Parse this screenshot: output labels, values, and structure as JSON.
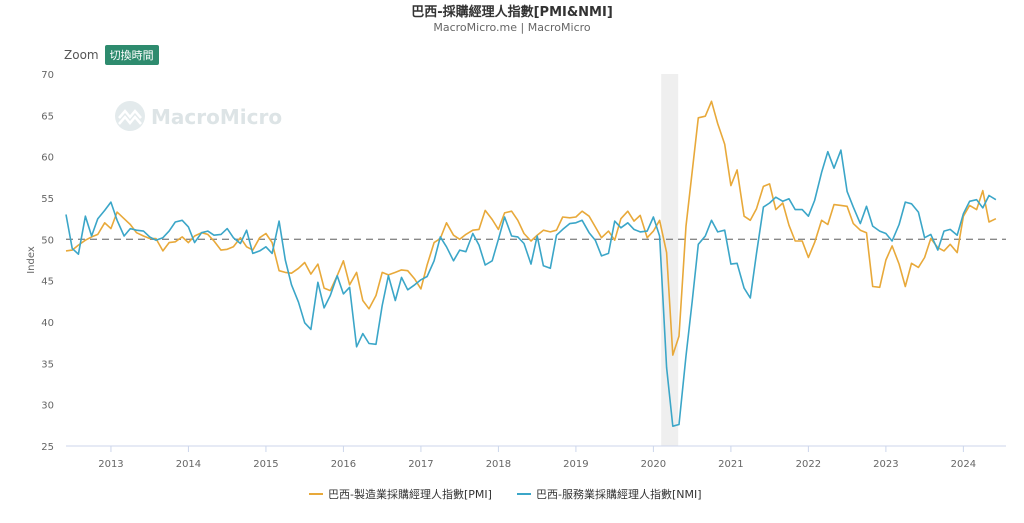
{
  "header": {
    "title": "巴西-採購經理人指數[PMI&NMI]",
    "subtitle": "MacroMicro.me | MacroMicro"
  },
  "toolbar": {
    "zoom_label": "Zoom",
    "toggle_label": "切換時間"
  },
  "watermark": {
    "text": "MacroMicro"
  },
  "chart_data": {
    "type": "line",
    "ylabel": "Index",
    "ylim": [
      25,
      70
    ],
    "yticks": [
      25,
      30,
      35,
      40,
      45,
      50,
      55,
      60,
      65,
      70
    ],
    "xlim": [
      2012.42,
      2024.55
    ],
    "xticks": [
      2013,
      2014,
      2015,
      2016,
      2017,
      2018,
      2019,
      2020,
      2021,
      2022,
      2023,
      2024
    ],
    "reference_line": 50,
    "shaded_region": [
      2020.1,
      2020.32
    ],
    "series": [
      {
        "name": "巴西-製造業採購經理人指數[PMI]",
        "color": "#e8a93a",
        "points": [
          [
            2012.42,
            48.6
          ],
          [
            2012.5,
            48.7
          ],
          [
            2012.58,
            49.3
          ],
          [
            2012.67,
            49.9
          ],
          [
            2012.75,
            50.3
          ],
          [
            2012.83,
            50.6
          ],
          [
            2012.92,
            52.0
          ],
          [
            2013.0,
            51.3
          ],
          [
            2013.08,
            53.3
          ],
          [
            2013.17,
            52.5
          ],
          [
            2013.25,
            51.8
          ],
          [
            2013.33,
            50.8
          ],
          [
            2013.42,
            50.4
          ],
          [
            2013.5,
            50.1
          ],
          [
            2013.58,
            50.1
          ],
          [
            2013.67,
            48.6
          ],
          [
            2013.75,
            49.6
          ],
          [
            2013.83,
            49.7
          ],
          [
            2013.92,
            50.3
          ],
          [
            2014.0,
            49.6
          ],
          [
            2014.08,
            50.4
          ],
          [
            2014.17,
            50.8
          ],
          [
            2014.25,
            50.6
          ],
          [
            2014.33,
            49.8
          ],
          [
            2014.42,
            48.7
          ],
          [
            2014.5,
            48.8
          ],
          [
            2014.58,
            49.1
          ],
          [
            2014.67,
            50.2
          ],
          [
            2014.75,
            49.1
          ],
          [
            2014.83,
            48.7
          ],
          [
            2014.92,
            50.2
          ],
          [
            2015.0,
            50.7
          ],
          [
            2015.08,
            49.6
          ],
          [
            2015.17,
            46.2
          ],
          [
            2015.25,
            46.0
          ],
          [
            2015.33,
            45.9
          ],
          [
            2015.42,
            46.5
          ],
          [
            2015.5,
            47.2
          ],
          [
            2015.58,
            45.8
          ],
          [
            2015.67,
            47.0
          ],
          [
            2015.75,
            44.1
          ],
          [
            2015.83,
            43.8
          ],
          [
            2015.92,
            45.6
          ],
          [
            2016.0,
            47.4
          ],
          [
            2016.08,
            44.5
          ],
          [
            2016.17,
            46.0
          ],
          [
            2016.25,
            42.6
          ],
          [
            2016.33,
            41.6
          ],
          [
            2016.42,
            43.2
          ],
          [
            2016.5,
            46.0
          ],
          [
            2016.58,
            45.7
          ],
          [
            2016.67,
            46.0
          ],
          [
            2016.75,
            46.3
          ],
          [
            2016.83,
            46.2
          ],
          [
            2016.92,
            45.2
          ],
          [
            2017.0,
            44.0
          ],
          [
            2017.08,
            46.9
          ],
          [
            2017.17,
            49.6
          ],
          [
            2017.25,
            50.1
          ],
          [
            2017.33,
            52.0
          ],
          [
            2017.42,
            50.5
          ],
          [
            2017.5,
            50.0
          ],
          [
            2017.58,
            50.6
          ],
          [
            2017.67,
            51.1
          ],
          [
            2017.75,
            51.2
          ],
          [
            2017.83,
            53.5
          ],
          [
            2017.92,
            52.4
          ],
          [
            2018.0,
            51.2
          ],
          [
            2018.08,
            53.2
          ],
          [
            2018.17,
            53.4
          ],
          [
            2018.25,
            52.3
          ],
          [
            2018.33,
            50.7
          ],
          [
            2018.42,
            49.8
          ],
          [
            2018.5,
            50.5
          ],
          [
            2018.58,
            51.1
          ],
          [
            2018.67,
            50.9
          ],
          [
            2018.75,
            51.1
          ],
          [
            2018.83,
            52.7
          ],
          [
            2018.92,
            52.6
          ],
          [
            2019.0,
            52.7
          ],
          [
            2019.08,
            53.4
          ],
          [
            2019.17,
            52.8
          ],
          [
            2019.25,
            51.5
          ],
          [
            2019.33,
            50.2
          ],
          [
            2019.42,
            51.0
          ],
          [
            2019.5,
            49.9
          ],
          [
            2019.58,
            52.5
          ],
          [
            2019.67,
            53.4
          ],
          [
            2019.75,
            52.2
          ],
          [
            2019.83,
            52.9
          ],
          [
            2019.92,
            50.2
          ],
          [
            2020.0,
            51.0
          ],
          [
            2020.08,
            52.3
          ],
          [
            2020.17,
            48.4
          ],
          [
            2020.25,
            36.0
          ],
          [
            2020.33,
            38.3
          ],
          [
            2020.42,
            51.6
          ],
          [
            2020.5,
            58.2
          ],
          [
            2020.58,
            64.7
          ],
          [
            2020.67,
            64.9
          ],
          [
            2020.75,
            66.7
          ],
          [
            2020.83,
            64.0
          ],
          [
            2020.92,
            61.5
          ],
          [
            2021.0,
            56.5
          ],
          [
            2021.08,
            58.4
          ],
          [
            2021.17,
            52.8
          ],
          [
            2021.25,
            52.3
          ],
          [
            2021.33,
            53.7
          ],
          [
            2021.42,
            56.4
          ],
          [
            2021.5,
            56.7
          ],
          [
            2021.58,
            53.6
          ],
          [
            2021.67,
            54.4
          ],
          [
            2021.75,
            51.7
          ],
          [
            2021.83,
            49.8
          ],
          [
            2021.92,
            49.8
          ],
          [
            2022.0,
            47.8
          ],
          [
            2022.08,
            49.6
          ],
          [
            2022.17,
            52.3
          ],
          [
            2022.25,
            51.8
          ],
          [
            2022.33,
            54.2
          ],
          [
            2022.42,
            54.1
          ],
          [
            2022.5,
            54.0
          ],
          [
            2022.58,
            51.9
          ],
          [
            2022.67,
            51.1
          ],
          [
            2022.75,
            50.8
          ],
          [
            2022.83,
            44.3
          ],
          [
            2022.92,
            44.2
          ],
          [
            2023.0,
            47.5
          ],
          [
            2023.08,
            49.2
          ],
          [
            2023.17,
            47.0
          ],
          [
            2023.25,
            44.3
          ],
          [
            2023.33,
            47.1
          ],
          [
            2023.42,
            46.6
          ],
          [
            2023.5,
            47.8
          ],
          [
            2023.58,
            50.1
          ],
          [
            2023.67,
            49.0
          ],
          [
            2023.75,
            48.6
          ],
          [
            2023.83,
            49.4
          ],
          [
            2023.92,
            48.4
          ],
          [
            2024.0,
            52.8
          ],
          [
            2024.08,
            54.1
          ],
          [
            2024.17,
            53.6
          ],
          [
            2024.25,
            55.9
          ],
          [
            2024.33,
            52.1
          ],
          [
            2024.42,
            52.5
          ]
        ]
      },
      {
        "name": "巴西-服務業採購經理人指數[NMI]",
        "color": "#3ba6c8",
        "points": [
          [
            2012.42,
            53.0
          ],
          [
            2012.5,
            48.9
          ],
          [
            2012.58,
            48.2
          ],
          [
            2012.67,
            52.8
          ],
          [
            2012.75,
            50.4
          ],
          [
            2012.83,
            52.5
          ],
          [
            2012.92,
            53.5
          ],
          [
            2013.0,
            54.5
          ],
          [
            2013.08,
            52.3
          ],
          [
            2013.17,
            50.4
          ],
          [
            2013.25,
            51.3
          ],
          [
            2013.33,
            51.1
          ],
          [
            2013.42,
            51.0
          ],
          [
            2013.5,
            50.3
          ],
          [
            2013.58,
            49.9
          ],
          [
            2013.67,
            50.2
          ],
          [
            2013.75,
            51.0
          ],
          [
            2013.83,
            52.1
          ],
          [
            2013.92,
            52.3
          ],
          [
            2014.0,
            51.5
          ],
          [
            2014.08,
            49.6
          ],
          [
            2014.17,
            50.8
          ],
          [
            2014.25,
            51.0
          ],
          [
            2014.33,
            50.5
          ],
          [
            2014.42,
            50.6
          ],
          [
            2014.5,
            51.3
          ],
          [
            2014.58,
            50.2
          ],
          [
            2014.67,
            49.5
          ],
          [
            2014.75,
            51.1
          ],
          [
            2014.83,
            48.3
          ],
          [
            2014.92,
            48.6
          ],
          [
            2015.0,
            49.1
          ],
          [
            2015.08,
            48.3
          ],
          [
            2015.17,
            52.2
          ],
          [
            2015.25,
            47.5
          ],
          [
            2015.33,
            44.5
          ],
          [
            2015.42,
            42.4
          ],
          [
            2015.5,
            39.9
          ],
          [
            2015.58,
            39.1
          ],
          [
            2015.67,
            44.8
          ],
          [
            2015.75,
            41.7
          ],
          [
            2015.83,
            43.2
          ],
          [
            2015.92,
            45.6
          ],
          [
            2016.0,
            43.4
          ],
          [
            2016.08,
            44.2
          ],
          [
            2016.17,
            37.0
          ],
          [
            2016.25,
            38.6
          ],
          [
            2016.33,
            37.4
          ],
          [
            2016.42,
            37.3
          ],
          [
            2016.5,
            42.0
          ],
          [
            2016.58,
            45.6
          ],
          [
            2016.67,
            42.6
          ],
          [
            2016.75,
            45.4
          ],
          [
            2016.83,
            43.9
          ],
          [
            2016.92,
            44.5
          ],
          [
            2017.0,
            45.1
          ],
          [
            2017.08,
            45.5
          ],
          [
            2017.17,
            47.4
          ],
          [
            2017.25,
            50.3
          ],
          [
            2017.33,
            49.1
          ],
          [
            2017.42,
            47.4
          ],
          [
            2017.5,
            48.7
          ],
          [
            2017.58,
            48.5
          ],
          [
            2017.67,
            50.7
          ],
          [
            2017.75,
            49.3
          ],
          [
            2017.83,
            46.9
          ],
          [
            2017.92,
            47.4
          ],
          [
            2018.0,
            50.0
          ],
          [
            2018.08,
            52.7
          ],
          [
            2018.17,
            50.4
          ],
          [
            2018.25,
            50.3
          ],
          [
            2018.33,
            49.5
          ],
          [
            2018.42,
            47.0
          ],
          [
            2018.5,
            50.4
          ],
          [
            2018.58,
            46.8
          ],
          [
            2018.67,
            46.5
          ],
          [
            2018.75,
            50.5
          ],
          [
            2018.83,
            51.2
          ],
          [
            2018.92,
            51.9
          ],
          [
            2019.0,
            52.0
          ],
          [
            2019.08,
            52.3
          ],
          [
            2019.17,
            50.8
          ],
          [
            2019.25,
            49.9
          ],
          [
            2019.33,
            48.0
          ],
          [
            2019.42,
            48.3
          ],
          [
            2019.5,
            52.2
          ],
          [
            2019.58,
            51.4
          ],
          [
            2019.67,
            52.0
          ],
          [
            2019.75,
            51.2
          ],
          [
            2019.83,
            50.9
          ],
          [
            2019.92,
            51.0
          ],
          [
            2020.0,
            52.7
          ],
          [
            2020.08,
            50.4
          ],
          [
            2020.17,
            34.5
          ],
          [
            2020.25,
            27.4
          ],
          [
            2020.33,
            27.6
          ],
          [
            2020.42,
            35.9
          ],
          [
            2020.5,
            42.5
          ],
          [
            2020.58,
            49.4
          ],
          [
            2020.67,
            50.4
          ],
          [
            2020.75,
            52.3
          ],
          [
            2020.83,
            50.9
          ],
          [
            2020.92,
            51.1
          ],
          [
            2021.0,
            47.0
          ],
          [
            2021.08,
            47.1
          ],
          [
            2021.17,
            44.1
          ],
          [
            2021.25,
            42.9
          ],
          [
            2021.33,
            48.3
          ],
          [
            2021.42,
            53.9
          ],
          [
            2021.5,
            54.4
          ],
          [
            2021.58,
            55.1
          ],
          [
            2021.67,
            54.6
          ],
          [
            2021.75,
            54.9
          ],
          [
            2021.83,
            53.6
          ],
          [
            2021.92,
            53.6
          ],
          [
            2022.0,
            52.8
          ],
          [
            2022.08,
            54.7
          ],
          [
            2022.17,
            58.1
          ],
          [
            2022.25,
            60.6
          ],
          [
            2022.33,
            58.6
          ],
          [
            2022.42,
            60.8
          ],
          [
            2022.5,
            55.8
          ],
          [
            2022.58,
            53.9
          ],
          [
            2022.67,
            51.9
          ],
          [
            2022.75,
            54.0
          ],
          [
            2022.83,
            51.6
          ],
          [
            2022.92,
            51.0
          ],
          [
            2023.0,
            50.7
          ],
          [
            2023.08,
            49.8
          ],
          [
            2023.17,
            51.8
          ],
          [
            2023.25,
            54.5
          ],
          [
            2023.33,
            54.3
          ],
          [
            2023.42,
            53.3
          ],
          [
            2023.5,
            50.2
          ],
          [
            2023.58,
            50.6
          ],
          [
            2023.67,
            48.7
          ],
          [
            2023.75,
            51.0
          ],
          [
            2023.83,
            51.2
          ],
          [
            2023.92,
            50.5
          ],
          [
            2024.0,
            53.1
          ],
          [
            2024.08,
            54.6
          ],
          [
            2024.17,
            54.8
          ],
          [
            2024.25,
            53.8
          ],
          [
            2024.33,
            55.3
          ],
          [
            2024.42,
            54.8
          ]
        ]
      }
    ]
  }
}
